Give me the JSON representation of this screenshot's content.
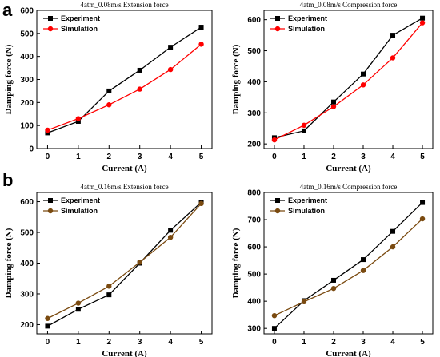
{
  "panel_labels": [
    "a",
    "b"
  ],
  "chart_data": [
    {
      "type": "line",
      "title": "4atm_0.08m/s Extension force",
      "xlabel": "Current (A)",
      "ylabel": "Damping force (N)",
      "x": [
        0,
        1,
        2,
        3,
        4,
        5
      ],
      "xticks": [
        "0",
        "1",
        "2",
        "3",
        "4",
        "5"
      ],
      "ylim": [
        0,
        600
      ],
      "yticks": [
        "0",
        "100",
        "200",
        "300",
        "400",
        "500",
        "600"
      ],
      "legend": "top-left",
      "series": [
        {
          "name": "Experiment",
          "color": "#000000",
          "marker": "square",
          "values": [
            68,
            118,
            250,
            340,
            440,
            527
          ]
        },
        {
          "name": "Simulation",
          "color": "#ff0000",
          "marker": "circle",
          "values": [
            80,
            130,
            190,
            258,
            343,
            453
          ]
        }
      ]
    },
    {
      "type": "line",
      "title": "4atm_0.08m/s Compression force",
      "xlabel": "Current (A)",
      "ylabel": "Damping force (N)",
      "x": [
        0,
        1,
        2,
        3,
        4,
        5
      ],
      "xticks": [
        "0",
        "1",
        "2",
        "3",
        "4",
        "5"
      ],
      "ylim": [
        185,
        630
      ],
      "yticks": [
        "200",
        "300",
        "400",
        "500",
        "600"
      ],
      "legend": "top-left",
      "series": [
        {
          "name": "Experiment",
          "color": "#000000",
          "marker": "square",
          "values": [
            220,
            242,
            335,
            425,
            550,
            605
          ]
        },
        {
          "name": "Simulation",
          "color": "#ff0000",
          "marker": "circle",
          "values": [
            213,
            260,
            320,
            390,
            477,
            590
          ]
        }
      ]
    },
    {
      "type": "line",
      "title": "4atm_0.16m/s Extension force",
      "xlabel": "Current (A)",
      "ylabel": "Damping force (N)",
      "x": [
        0,
        1,
        2,
        3,
        4,
        5
      ],
      "xticks": [
        "0",
        "1",
        "2",
        "3",
        "4",
        "5"
      ],
      "ylim": [
        170,
        630
      ],
      "yticks": [
        "200",
        "300",
        "400",
        "500",
        "600"
      ],
      "legend": "top-left",
      "series": [
        {
          "name": "Experiment",
          "color": "#000000",
          "marker": "square",
          "values": [
            195,
            250,
            297,
            400,
            507,
            598
          ]
        },
        {
          "name": "Simulation",
          "color": "#7a4a10",
          "marker": "circle",
          "values": [
            220,
            270,
            325,
            403,
            484,
            594
          ]
        }
      ]
    },
    {
      "type": "line",
      "title": "4atm_0.16m/s Compression force",
      "xlabel": "Current (A)",
      "ylabel": "Damping force (N)",
      "x": [
        0,
        1,
        2,
        3,
        4,
        5
      ],
      "xticks": [
        "0",
        "1",
        "2",
        "3",
        "4",
        "5"
      ],
      "ylim": [
        280,
        800
      ],
      "yticks": [
        "300",
        "400",
        "500",
        "600",
        "700",
        "800"
      ],
      "legend": "top-left",
      "series": [
        {
          "name": "Experiment",
          "color": "#000000",
          "marker": "square",
          "values": [
            300,
            402,
            477,
            553,
            657,
            763
          ]
        },
        {
          "name": "Simulation",
          "color": "#7a4a10",
          "marker": "circle",
          "values": [
            347,
            398,
            447,
            513,
            600,
            703
          ]
        }
      ]
    }
  ]
}
